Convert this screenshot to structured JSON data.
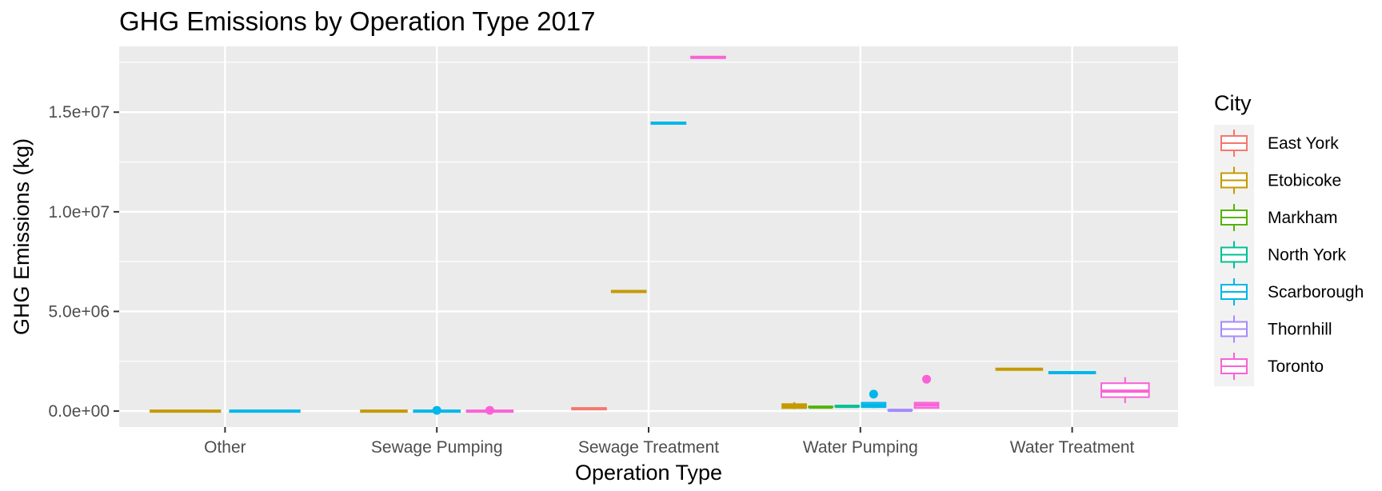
{
  "chart_data": {
    "type": "boxplot",
    "title": "GHG Emissions by Operation Type 2017",
    "xlabel": "Operation Type",
    "ylabel": "GHG Emissions (kg)",
    "categories": [
      "Other",
      "Sewage Pumping",
      "Sewage Treatment",
      "Water Pumping",
      "Water Treatment"
    ],
    "ylim": [
      -800000,
      18300000
    ],
    "y_ticks": [
      0,
      5000000,
      10000000,
      15000000
    ],
    "y_tick_labels": [
      "0.0e+00",
      "5.0e+06",
      "1.0e+07",
      "1.5e+07"
    ],
    "grid": true,
    "legend": {
      "title": "City",
      "position": "right",
      "items": [
        {
          "name": "East York",
          "color": "#F8766D"
        },
        {
          "name": "Etobicoke",
          "color": "#C49A00"
        },
        {
          "name": "Markham",
          "color": "#53B400"
        },
        {
          "name": "North York",
          "color": "#00C094"
        },
        {
          "name": "Scarborough",
          "color": "#00B6EB"
        },
        {
          "name": "Thornhill",
          "color": "#A58AFF"
        },
        {
          "name": "Toronto",
          "color": "#FB61D7"
        }
      ]
    },
    "boxes": [
      {
        "category": "Other",
        "city": "Etobicoke",
        "min": 0,
        "q1": 0,
        "median": 0,
        "q3": 0,
        "max": 0,
        "outliers": []
      },
      {
        "category": "Other",
        "city": "Scarborough",
        "min": 0,
        "q1": 0,
        "median": 0,
        "q3": 0,
        "max": 0,
        "outliers": []
      },
      {
        "category": "Sewage Pumping",
        "city": "Etobicoke",
        "min": 0,
        "q1": 0,
        "median": 0,
        "q3": 0,
        "max": 0,
        "outliers": []
      },
      {
        "category": "Sewage Pumping",
        "city": "Scarborough",
        "min": 0,
        "q1": 0,
        "median": 0,
        "q3": 0,
        "max": 0,
        "outliers": [
          40000
        ]
      },
      {
        "category": "Sewage Pumping",
        "city": "Toronto",
        "min": 0,
        "q1": 0,
        "median": 0,
        "q3": 0,
        "max": 0,
        "outliers": [
          40000
        ]
      },
      {
        "category": "Sewage Treatment",
        "city": "East York",
        "min": 120000,
        "q1": 120000,
        "median": 120000,
        "q3": 120000,
        "max": 120000,
        "outliers": []
      },
      {
        "category": "Sewage Treatment",
        "city": "Etobicoke",
        "min": 6000000,
        "q1": 6000000,
        "median": 6000000,
        "q3": 6000000,
        "max": 6000000,
        "outliers": []
      },
      {
        "category": "Sewage Treatment",
        "city": "Scarborough",
        "min": 14450000,
        "q1": 14450000,
        "median": 14450000,
        "q3": 14450000,
        "max": 14450000,
        "outliers": []
      },
      {
        "category": "Sewage Treatment",
        "city": "Toronto",
        "min": 17750000,
        "q1": 17750000,
        "median": 17750000,
        "q3": 17750000,
        "max": 17750000,
        "outliers": []
      },
      {
        "category": "Water Pumping",
        "city": "Etobicoke",
        "min": 100000,
        "q1": 150000,
        "median": 250000,
        "q3": 350000,
        "max": 450000,
        "outliers": []
      },
      {
        "category": "Water Pumping",
        "city": "Markham",
        "min": 200000,
        "q1": 200000,
        "median": 200000,
        "q3": 220000,
        "max": 220000,
        "outliers": []
      },
      {
        "category": "Water Pumping",
        "city": "North York",
        "min": 220000,
        "q1": 230000,
        "median": 240000,
        "q3": 260000,
        "max": 260000,
        "outliers": []
      },
      {
        "category": "Water Pumping",
        "city": "Scarborough",
        "min": 150000,
        "q1": 200000,
        "median": 300000,
        "q3": 420000,
        "max": 450000,
        "outliers": [
          850000
        ]
      },
      {
        "category": "Water Pumping",
        "city": "Thornhill",
        "min": 20000,
        "q1": 30000,
        "median": 40000,
        "q3": 50000,
        "max": 60000,
        "outliers": []
      },
      {
        "category": "Water Pumping",
        "city": "Toronto",
        "min": 130000,
        "q1": 160000,
        "median": 300000,
        "q3": 420000,
        "max": 450000,
        "outliers": [
          1600000
        ]
      },
      {
        "category": "Water Treatment",
        "city": "Etobicoke",
        "min": 2100000,
        "q1": 2100000,
        "median": 2100000,
        "q3": 2100000,
        "max": 2100000,
        "outliers": []
      },
      {
        "category": "Water Treatment",
        "city": "Scarborough",
        "min": 1930000,
        "q1": 1930000,
        "median": 1930000,
        "q3": 1930000,
        "max": 1930000,
        "outliers": []
      },
      {
        "category": "Water Treatment",
        "city": "Toronto",
        "min": 400000,
        "q1": 700000,
        "median": 1000000,
        "q3": 1400000,
        "max": 1700000,
        "outliers": []
      }
    ]
  }
}
